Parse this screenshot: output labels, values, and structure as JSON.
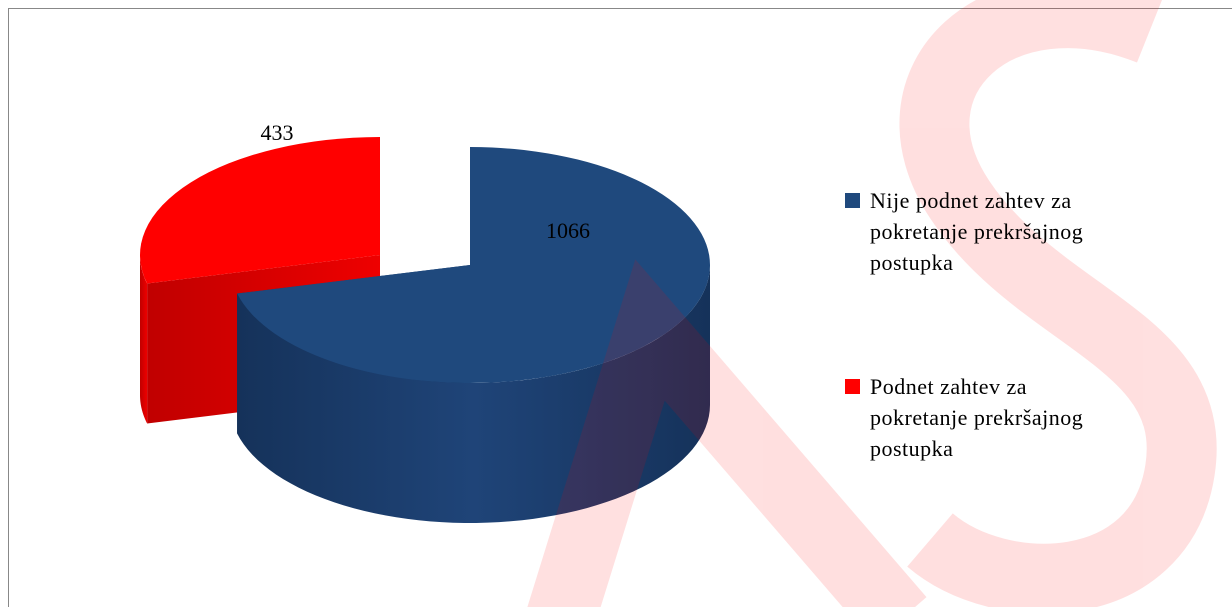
{
  "chart_data": {
    "type": "pie",
    "three_d": true,
    "categories": [
      "Nije podnet zahtev za pokretanje prekršajnog postupka",
      "Podnet zahtev za pokretanje prekršajnog postupka"
    ],
    "values": [
      1066,
      433
    ],
    "colors": [
      "#1f497d",
      "#ff0000"
    ],
    "legend": "right"
  }
}
